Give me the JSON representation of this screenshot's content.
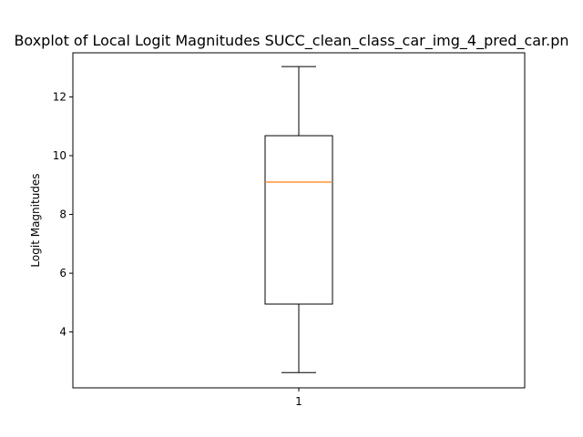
{
  "chart_data": {
    "type": "boxplot",
    "title": "Boxplot of Local Logit Magnitudes SUCC_clean_class_car_img_4_pred_car.pn",
    "xlabel": "",
    "ylabel": "Logit Magnitudes",
    "categories": [
      "1"
    ],
    "boxes": [
      {
        "category": "1",
        "whisker_low": 2.62,
        "q1": 4.95,
        "median": 9.1,
        "q3": 10.68,
        "whisker_high": 13.03
      }
    ],
    "ylim": [
      2.1,
      13.5
    ],
    "yticks": [
      4,
      6,
      8,
      10,
      12
    ],
    "grid": false,
    "colors": {
      "box": "#000000",
      "median": "#ff7f0e",
      "whisker": "#000000"
    }
  }
}
